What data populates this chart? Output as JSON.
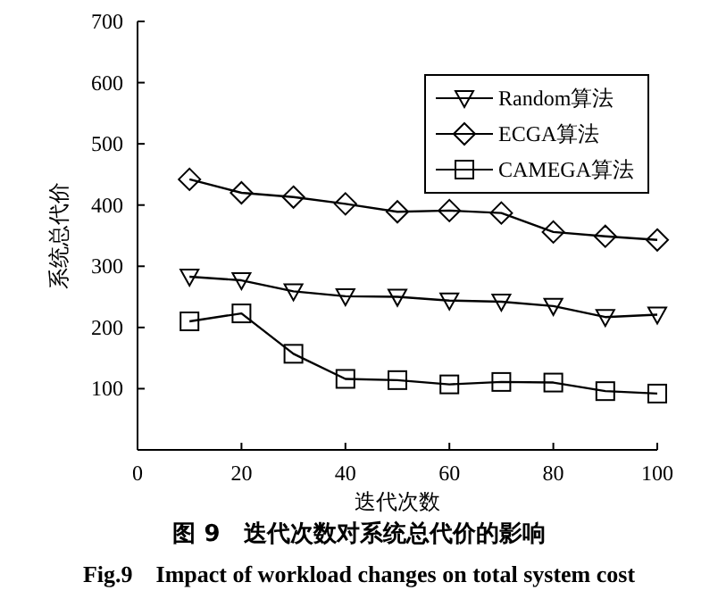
{
  "chart_data": {
    "type": "line",
    "title": "图 9　迭代次数对系统总代价的影响",
    "subtitle": "Fig.9　Impact of workload changes on total system cost",
    "xlabel": "迭代次数",
    "ylabel": "系统总代价",
    "x": [
      10,
      20,
      30,
      40,
      50,
      60,
      70,
      80,
      90,
      100
    ],
    "xlim": [
      0,
      100
    ],
    "xticks": [
      0,
      20,
      40,
      60,
      80,
      100
    ],
    "ylim": [
      0,
      700
    ],
    "yticks": [
      100,
      200,
      300,
      400,
      500,
      600,
      700
    ],
    "legend": "top right",
    "grid": false,
    "line_style": "solid",
    "series": [
      {
        "name": "Random算法",
        "color": "#000000",
        "marker": "triangle",
        "values": [
          283,
          277,
          259,
          251,
          250,
          244,
          242,
          235,
          217,
          221
        ]
      },
      {
        "name": "ECGA算法",
        "color": "#000000",
        "marker": "diamond",
        "values": [
          442,
          420,
          413,
          402,
          389,
          391,
          387,
          356,
          349,
          343
        ]
      },
      {
        "name": "CAMEGA算法",
        "color": "#000000",
        "marker": "square",
        "values": [
          210,
          223,
          157,
          116,
          114,
          107,
          111,
          110,
          96,
          92
        ]
      }
    ]
  }
}
